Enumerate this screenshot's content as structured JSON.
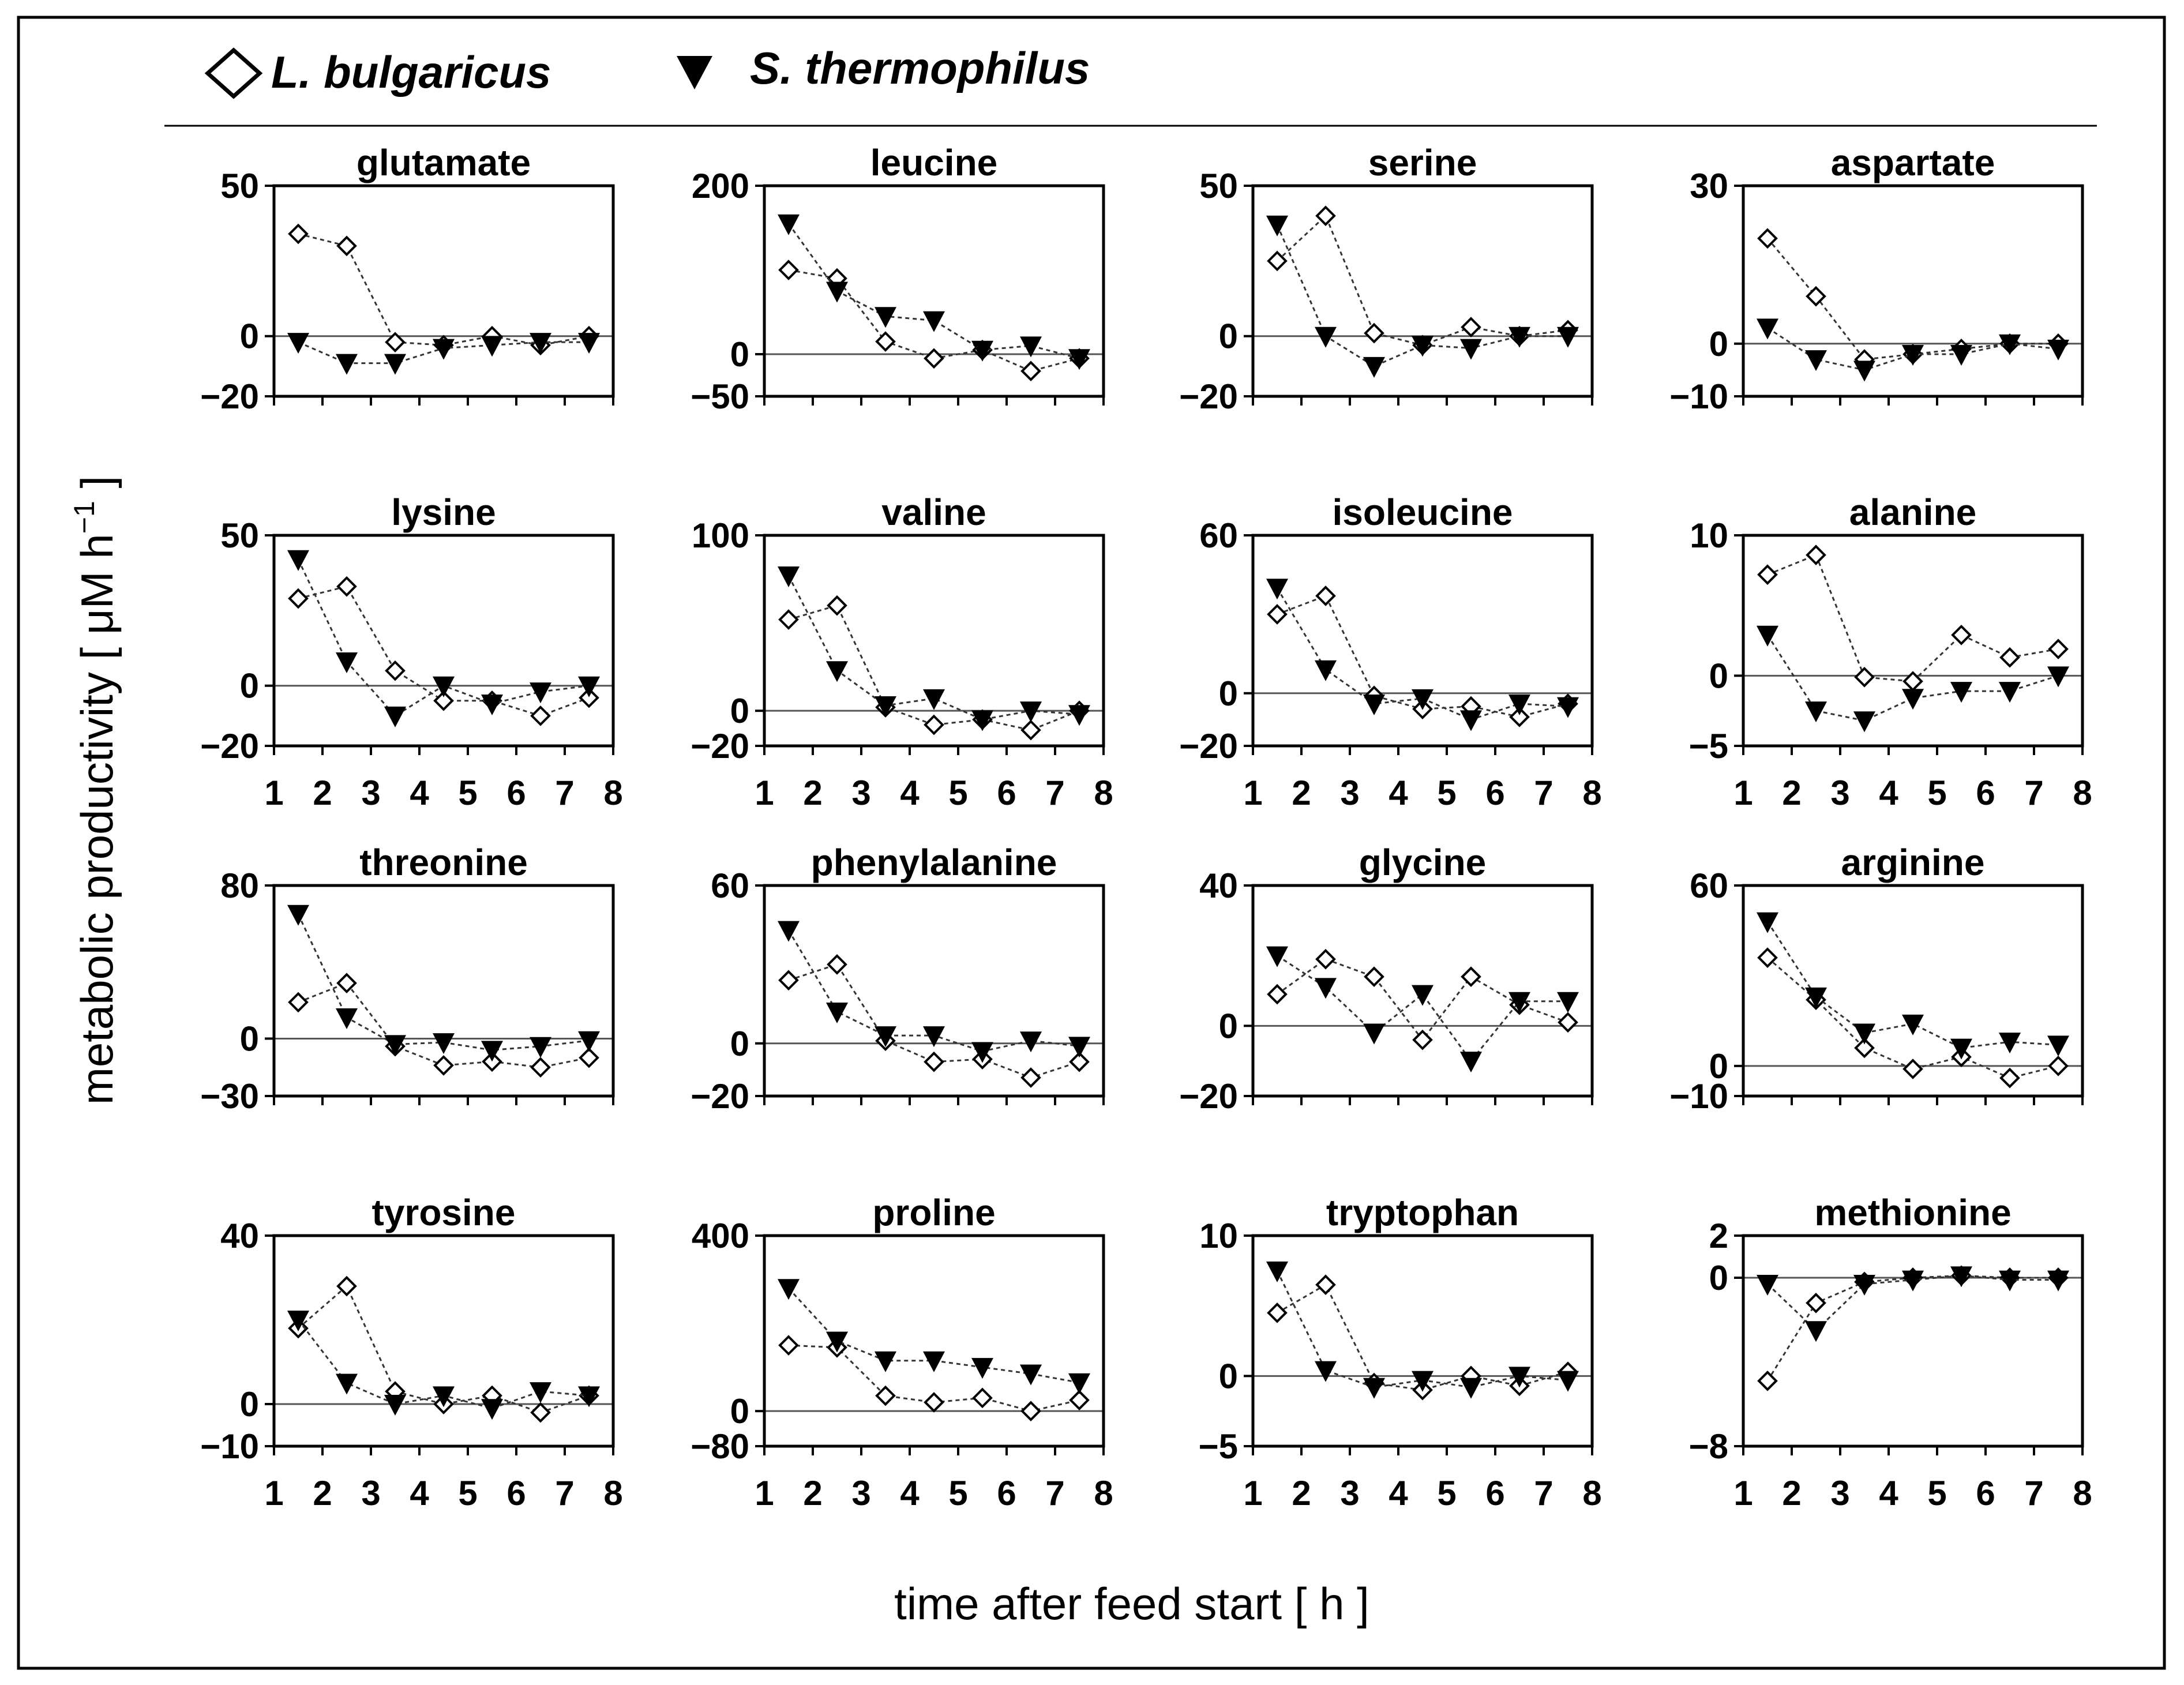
{
  "chart_data": {
    "type": "line",
    "legend": [
      {
        "name": "L. bulgaricus",
        "marker": "diamond-open"
      },
      {
        "name": "S. thermophilus",
        "marker": "triangle-down-filled"
      }
    ],
    "xlabel": "time after feed start [ h ]",
    "ylabel": "metabolic productivity [ μM h",
    "ylabel_sup": "−1",
    "ylabel_end": " ]",
    "xlim": [
      1,
      8
    ],
    "x": [
      1.5,
      2.5,
      3.5,
      4.5,
      5.5,
      6.5,
      7.5
    ],
    "xticks": [
      "1",
      "2",
      "3",
      "4",
      "5",
      "6",
      "7",
      "8"
    ],
    "panels": [
      {
        "title": "glutamate",
        "ylim": [
          -20,
          50
        ],
        "yticks": [
          50,
          0,
          -20
        ],
        "ytick_labels": [
          "50",
          "0",
          "−20"
        ],
        "series": [
          {
            "name": "L. bulgaricus",
            "values": [
              34,
              30,
              -2,
              -3,
              0,
              -3,
              0
            ]
          },
          {
            "name": "S. thermophilus",
            "values": [
              -2,
              -9,
              -9,
              -4,
              -3,
              -2,
              -2
            ]
          }
        ]
      },
      {
        "title": "leucine",
        "ylim": [
          -50,
          200
        ],
        "yticks": [
          200,
          0,
          -50
        ],
        "ytick_labels": [
          "200",
          "0",
          "−50"
        ],
        "series": [
          {
            "name": "L. bulgaricus",
            "values": [
              100,
              90,
              15,
              -5,
              5,
              -20,
              -5
            ]
          },
          {
            "name": "S. thermophilus",
            "values": [
              155,
              75,
              45,
              40,
              5,
              10,
              -5
            ]
          }
        ]
      },
      {
        "title": "serine",
        "ylim": [
          -20,
          50
        ],
        "yticks": [
          50,
          0,
          -20
        ],
        "ytick_labels": [
          "50",
          "0",
          "−20"
        ],
        "series": [
          {
            "name": "L. bulgaricus",
            "values": [
              25,
              40,
              1,
              -3,
              3,
              0,
              2
            ]
          },
          {
            "name": "S. thermophilus",
            "values": [
              37,
              0,
              -10,
              -3,
              -4,
              0,
              0
            ]
          }
        ]
      },
      {
        "title": "aspartate",
        "ylim": [
          -10,
          30
        ],
        "yticks": [
          30,
          0,
          -10
        ],
        "ytick_labels": [
          "30",
          "0",
          "−10"
        ],
        "series": [
          {
            "name": "L. bulgaricus",
            "values": [
              20,
              9,
              -3,
              -2,
              -1,
              0,
              0
            ]
          },
          {
            "name": "S. thermophilus",
            "values": [
              3,
              -3,
              -5,
              -2,
              -2,
              0,
              -1
            ]
          }
        ]
      },
      {
        "title": "lysine",
        "ylim": [
          -20,
          50
        ],
        "yticks": [
          50,
          0,
          -20
        ],
        "ytick_labels": [
          "50",
          "0",
          "−20"
        ],
        "series": [
          {
            "name": "L. bulgaricus",
            "values": [
              29,
              33,
              5,
              -5,
              -5,
              -10,
              -4
            ]
          },
          {
            "name": "S. thermophilus",
            "values": [
              42,
              8,
              -10,
              0,
              -6,
              -2,
              0
            ]
          }
        ]
      },
      {
        "title": "valine",
        "ylim": [
          -20,
          100
        ],
        "yticks": [
          100,
          0,
          -20
        ],
        "ytick_labels": [
          "100",
          "0",
          "−20"
        ],
        "series": [
          {
            "name": "L. bulgaricus",
            "values": [
              52,
              60,
              2,
              -8,
              -5,
              -11,
              0
            ]
          },
          {
            "name": "S. thermophilus",
            "values": [
              77,
              23,
              3,
              7,
              -5,
              0,
              -2
            ]
          }
        ]
      },
      {
        "title": "isoleucine",
        "ylim": [
          -20,
          60
        ],
        "yticks": [
          60,
          0,
          -20
        ],
        "ytick_labels": [
          "60",
          "0",
          "−20"
        ],
        "series": [
          {
            "name": "L. bulgaricus",
            "values": [
              30,
              37,
              -1,
              -6,
              -5,
              -9,
              -4
            ]
          },
          {
            "name": "S. thermophilus",
            "values": [
              40,
              9,
              -4,
              -2,
              -10,
              -4,
              -5
            ]
          }
        ]
      },
      {
        "title": "alanine",
        "ylim": [
          -5,
          10
        ],
        "yticks": [
          10,
          0,
          -5
        ],
        "ytick_labels": [
          "10",
          "0",
          "−5"
        ],
        "series": [
          {
            "name": "L. bulgaricus",
            "values": [
              7.2,
              8.6,
              -0.1,
              -0.4,
              2.9,
              1.3,
              1.9
            ]
          },
          {
            "name": "S. thermophilus",
            "values": [
              2.9,
              -2.5,
              -3.2,
              -1.6,
              -1.1,
              -1.1,
              0.0
            ]
          }
        ]
      },
      {
        "title": "threonine",
        "ylim": [
          -30,
          80
        ],
        "yticks": [
          80,
          0,
          -30
        ],
        "ytick_labels": [
          "80",
          "0",
          "−30"
        ],
        "series": [
          {
            "name": "L. bulgaricus",
            "values": [
              19,
              29,
              -4,
              -14,
              -12,
              -15,
              -10
            ]
          },
          {
            "name": "S. thermophilus",
            "values": [
              65,
              11,
              -3,
              -2,
              -6,
              -4,
              -1
            ]
          }
        ]
      },
      {
        "title": "phenylalanine",
        "ylim": [
          -20,
          60
        ],
        "yticks": [
          60,
          0,
          -20
        ],
        "ytick_labels": [
          "60",
          "0",
          "−20"
        ],
        "series": [
          {
            "name": "L. bulgaricus",
            "values": [
              24,
              30,
              1,
              -7,
              -6,
              -13,
              -7
            ]
          },
          {
            "name": "S. thermophilus",
            "values": [
              43,
              12,
              3,
              3,
              -3,
              1,
              -1
            ]
          }
        ]
      },
      {
        "title": "glycine",
        "ylim": [
          -20,
          40
        ],
        "yticks": [
          40,
          0,
          -20
        ],
        "ytick_labels": [
          "40",
          "0",
          "−20"
        ],
        "series": [
          {
            "name": "L. bulgaricus",
            "values": [
              9,
              19,
              14,
              -4,
              14,
              6,
              1
            ]
          },
          {
            "name": "S. thermophilus",
            "values": [
              20,
              11,
              -2,
              9,
              -10,
              7,
              7
            ]
          }
        ]
      },
      {
        "title": "arginine",
        "ylim": [
          -10,
          60
        ],
        "yticks": [
          60,
          0,
          -10
        ],
        "ytick_labels": [
          "60",
          "0",
          "−10"
        ],
        "series": [
          {
            "name": "L. bulgaricus",
            "values": [
              36,
              22,
              6,
              -1,
              3,
              -4,
              0
            ]
          },
          {
            "name": "S. thermophilus",
            "values": [
              48,
              23,
              11,
              14,
              6,
              8,
              7
            ]
          }
        ]
      },
      {
        "title": "tyrosine",
        "ylim": [
          -10,
          40
        ],
        "yticks": [
          40,
          0,
          -10
        ],
        "ytick_labels": [
          "40",
          "0",
          "−10"
        ],
        "series": [
          {
            "name": "L. bulgaricus",
            "values": [
              18,
              28,
              3,
              0,
              2,
              -2,
              2
            ]
          },
          {
            "name": "S. thermophilus",
            "values": [
              20,
              5,
              0,
              2,
              -1,
              3,
              2
            ]
          }
        ]
      },
      {
        "title": "proline",
        "ylim": [
          -80,
          400
        ],
        "yticks": [
          400,
          0,
          -80
        ],
        "ytick_labels": [
          "400",
          "0",
          "−80"
        ],
        "series": [
          {
            "name": "L. bulgaricus",
            "values": [
              150,
              145,
              35,
              20,
              30,
              0,
              25
            ]
          },
          {
            "name": "S. thermophilus",
            "values": [
              280,
              160,
              115,
              115,
              100,
              85,
              65
            ]
          }
        ]
      },
      {
        "title": "tryptophan",
        "ylim": [
          -5,
          10
        ],
        "yticks": [
          10,
          0,
          -5
        ],
        "ytick_labels": [
          "10",
          "0",
          "−5"
        ],
        "series": [
          {
            "name": "L. bulgaricus",
            "values": [
              4.5,
              6.5,
              -0.5,
              -1.0,
              0.0,
              -0.7,
              0.3
            ]
          },
          {
            "name": "S. thermophilus",
            "values": [
              7.5,
              0.4,
              -0.8,
              -0.3,
              -0.8,
              0.0,
              -0.3
            ]
          }
        ]
      },
      {
        "title": "methionine",
        "ylim": [
          -8,
          2
        ],
        "yticks": [
          2,
          0,
          -8
        ],
        "ytick_labels": [
          "2",
          "0",
          "−8"
        ],
        "series": [
          {
            "name": "L. bulgaricus",
            "values": [
              -4.9,
              -1.2,
              -0.2,
              0.0,
              0.1,
              0.0,
              0.0
            ]
          },
          {
            "name": "S. thermophilus",
            "values": [
              -0.3,
              -2.5,
              -0.3,
              -0.1,
              0.1,
              -0.1,
              -0.1
            ]
          }
        ]
      }
    ]
  }
}
